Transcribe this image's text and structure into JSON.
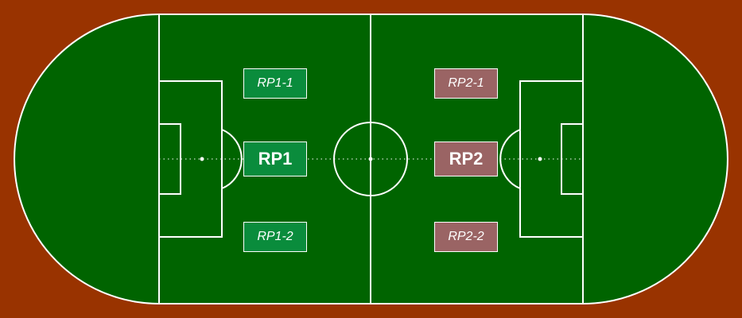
{
  "colors": {
    "track": "#993300",
    "pitch": "#006400",
    "lines": "#ffffff",
    "team1": "#0a8c3c",
    "team2": "#9a6464"
  },
  "markers": {
    "rp1_1": "RP1-1",
    "rp1": "RP1",
    "rp1_2": "RP1-2",
    "rp2_1": "RP2-1",
    "rp2": "RP2",
    "rp2_2": "RP2-2"
  }
}
